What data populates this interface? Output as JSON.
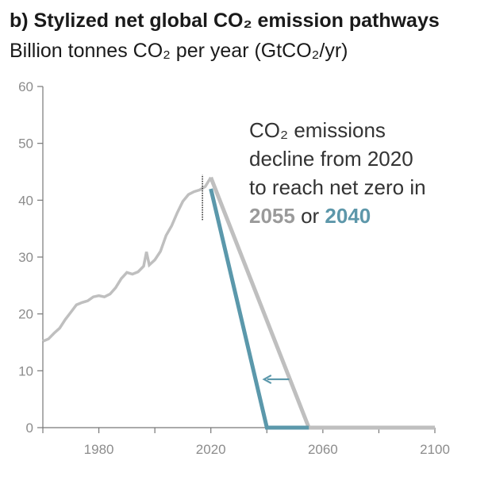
{
  "chart_data": {
    "type": "line",
    "title": "b) Stylized net global CO₂ emission pathways",
    "subtitle": "Billion tonnes CO₂ per year (GtCO₂/yr)",
    "xlabel": "",
    "ylabel": "Billion tonnes CO₂ per year (GtCO₂/yr)",
    "xlim": [
      1960,
      2100
    ],
    "ylim": [
      0,
      60
    ],
    "x_ticks": [
      1980,
      2020,
      2060,
      2100
    ],
    "y_ticks": [
      0,
      10,
      20,
      30,
      40,
      50,
      60
    ],
    "series": [
      {
        "name": "Historical emissions",
        "color": "#bfbfbf",
        "x": [
          1960,
          1962,
          1964,
          1966,
          1968,
          1970,
          1972,
          1974,
          1976,
          1978,
          1980,
          1982,
          1984,
          1986,
          1988,
          1990,
          1992,
          1994,
          1996,
          1997,
          1998,
          2000,
          2002,
          2004,
          2006,
          2008,
          2010,
          2012,
          2014,
          2016,
          2018,
          2020
        ],
        "values": [
          15.2,
          15.6,
          16.6,
          17.5,
          19.0,
          20.3,
          21.6,
          22.0,
          22.3,
          23.0,
          23.2,
          23.0,
          23.5,
          24.6,
          26.2,
          27.3,
          27.0,
          27.4,
          28.4,
          30.9,
          28.6,
          29.5,
          31.0,
          33.8,
          35.5,
          37.8,
          39.8,
          41.0,
          41.5,
          41.8,
          42.4,
          44.0
        ]
      },
      {
        "name": "Net zero in 2055",
        "color": "#bfbfbf",
        "x": [
          2020,
          2055,
          2100
        ],
        "values": [
          44.0,
          0,
          0
        ]
      },
      {
        "name": "Net zero in 2040",
        "color": "#5b98ab",
        "x": [
          2020,
          2040,
          2055
        ],
        "values": [
          42.0,
          0,
          0
        ]
      }
    ],
    "annotations": [
      {
        "type": "marker",
        "x": 2017,
        "range": [
          36.5,
          44.5
        ],
        "style": "dotted"
      },
      {
        "type": "arrow",
        "from": [
          2048,
          8.5
        ],
        "to": [
          2039,
          8.5
        ],
        "color": "#5b98ab"
      }
    ],
    "annotation_text": {
      "line1": "CO₂ emissions",
      "line2": "decline from 2020",
      "line3": "to reach net zero in",
      "year_a": "2055",
      "connector": " or ",
      "year_b": "2040"
    }
  }
}
